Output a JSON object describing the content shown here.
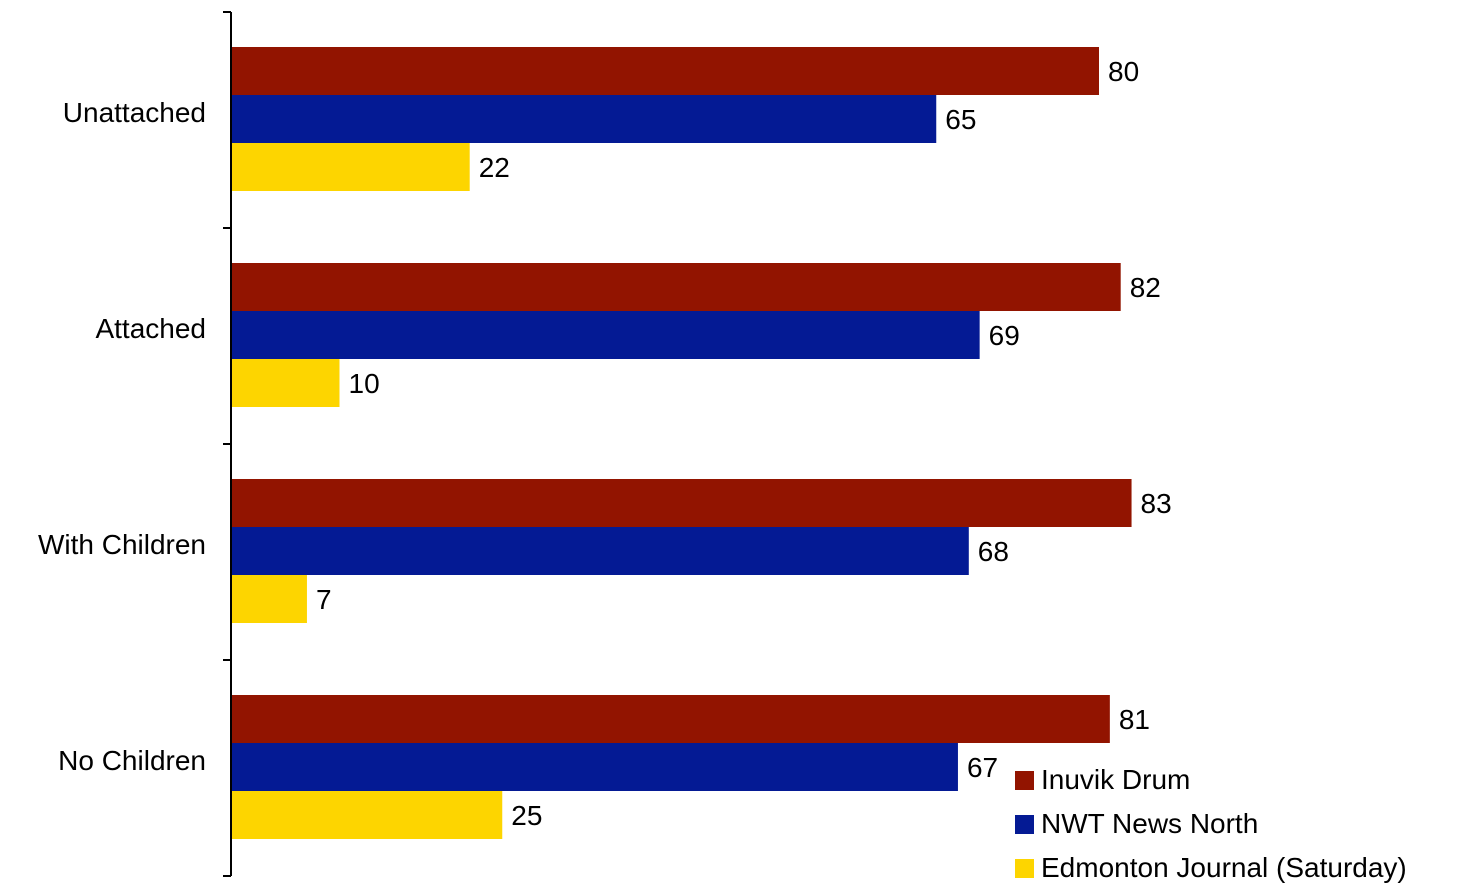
{
  "chart_data": {
    "type": "bar",
    "orientation": "horizontal",
    "categories": [
      "Unattached",
      "Attached",
      "With Children",
      "No Children"
    ],
    "series": [
      {
        "name": "Inuvik Drum",
        "color": "#921400",
        "values": [
          80,
          82,
          83,
          81
        ]
      },
      {
        "name": "NWT News North",
        "color": "#041A94",
        "values": [
          65,
          69,
          68,
          67
        ]
      },
      {
        "name": "Edmonton Journal (Saturday)",
        "color": "#FDD500",
        "values": [
          22,
          10,
          7,
          25
        ]
      }
    ],
    "title": "",
    "xlabel": "",
    "ylabel": "",
    "xlim": [
      0,
      100
    ],
    "grid": false,
    "legend_position": "bottom-right",
    "data_labels": true
  }
}
